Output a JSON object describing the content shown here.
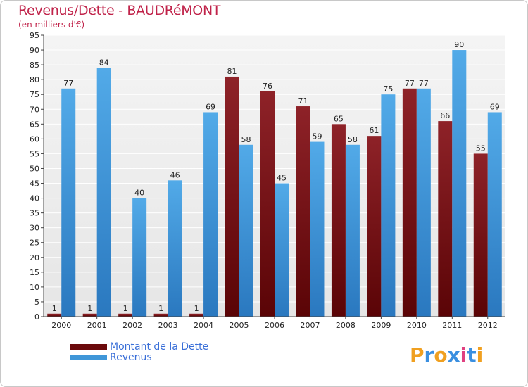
{
  "title": "Revenus/Dette - BAUDRéMONT",
  "subtitle": "(en milliers d'€)",
  "colors": {
    "dette": "#7a0f14",
    "revenus": "#3f96d8",
    "title": "#c0234a",
    "legend_text": "#3a6fd8"
  },
  "legend": [
    {
      "label": "Montant de la Dette",
      "color": "#6b0a0c"
    },
    {
      "label": "Revenus",
      "color": "#3f96d8"
    }
  ],
  "logo": {
    "text": "Proxiti",
    "letters": [
      "P",
      "r",
      "o",
      "x",
      "i",
      "t",
      "i"
    ],
    "letter_colors": [
      "#f0a020",
      "#3a8fe0",
      "#f0a020",
      "#3a8fe0",
      "#e04080",
      "#3a8fe0",
      "#f0a020"
    ]
  },
  "chart_data": {
    "type": "bar",
    "title": "Revenus/Dette - BAUDRéMONT",
    "ylabel": "(en milliers d'€)",
    "xlabel": "",
    "categories": [
      "2000",
      "2001",
      "2002",
      "2003",
      "2004",
      "2005",
      "2006",
      "2007",
      "2008",
      "2009",
      "2010",
      "2011",
      "2012"
    ],
    "series": [
      {
        "name": "Montant de la Dette",
        "values": [
          1,
          1,
          1,
          1,
          1,
          81,
          76,
          71,
          65,
          61,
          77,
          66,
          55
        ]
      },
      {
        "name": "Revenus",
        "values": [
          77,
          84,
          40,
          46,
          69,
          58,
          45,
          59,
          58,
          75,
          77,
          90,
          69
        ]
      }
    ],
    "ylim": [
      0,
      95
    ],
    "yticks": [
      0,
      5,
      10,
      15,
      20,
      25,
      30,
      35,
      40,
      45,
      50,
      55,
      60,
      65,
      70,
      75,
      80,
      85,
      90,
      95
    ],
    "grid": true,
    "legend_position": "bottom-left"
  }
}
